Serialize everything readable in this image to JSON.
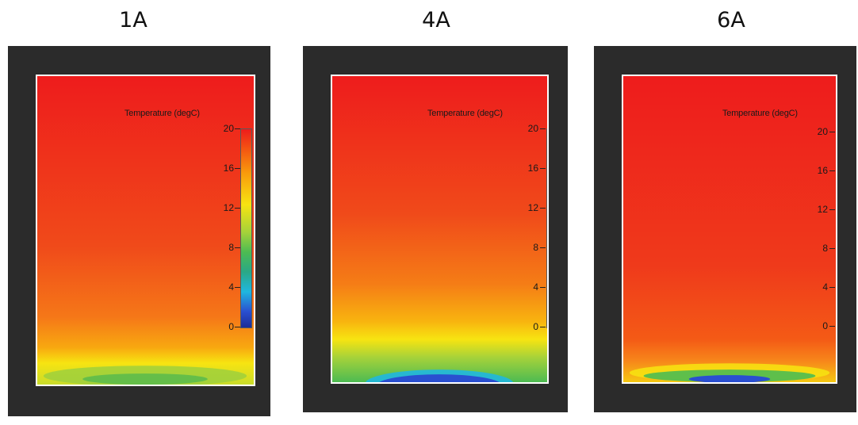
{
  "panels": [
    {
      "title": "1A"
    },
    {
      "title": "4A"
    },
    {
      "title": "6A"
    }
  ],
  "legend": {
    "title": "Temperature (degC)",
    "ticks": [
      "20",
      "16",
      "12",
      "8",
      "4",
      "0"
    ]
  },
  "colors": {
    "frame": "#2b2b2b",
    "hot": "#ee1c1c",
    "warm": "#f7e411",
    "mid": "#4dbb52",
    "cool": "#20b7df",
    "cold": "#1d2d98"
  }
}
